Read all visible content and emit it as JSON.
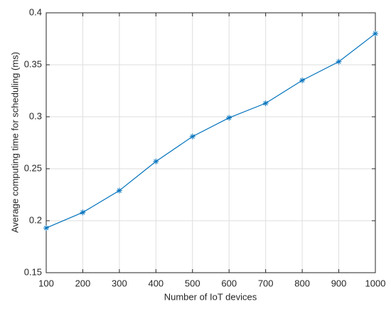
{
  "chart_data": {
    "type": "line",
    "x_label": "Number of IoT devices",
    "y_label": "Average computing time for scheduling (ms)",
    "x": [
      100,
      200,
      300,
      400,
      500,
      600,
      700,
      800,
      900,
      1000
    ],
    "series": [
      {
        "color": "#0072bd",
        "marker": "asterisk",
        "values": [
          0.193,
          0.208,
          0.229,
          0.257,
          0.281,
          0.299,
          0.313,
          0.335,
          0.353,
          0.38
        ]
      }
    ],
    "xlim": [
      100,
      1000
    ],
    "xticks": [
      100,
      200,
      300,
      400,
      500,
      600,
      700,
      800,
      900,
      1000
    ],
    "ylim": [
      0.15,
      0.4
    ],
    "yticks": [
      0.15,
      0.2,
      0.25,
      0.3,
      0.35,
      0.4
    ],
    "grid": true
  }
}
